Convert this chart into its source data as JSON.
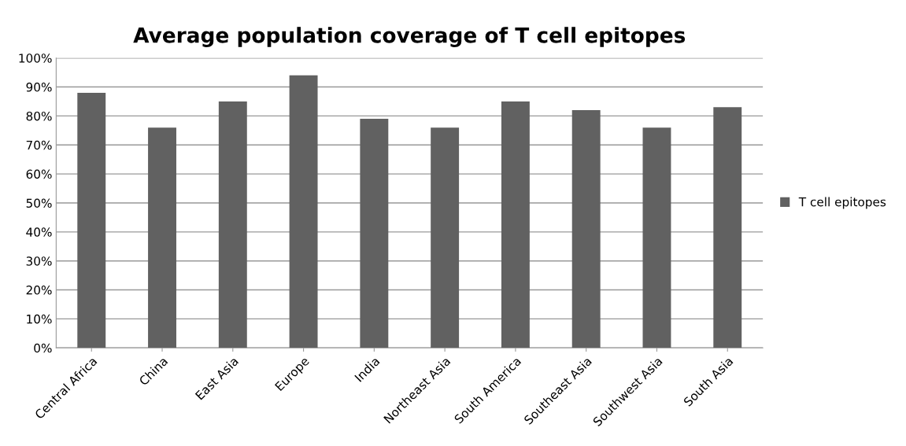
{
  "chart_data": {
    "type": "bar",
    "title": "Average population coverage of T cell epitopes",
    "categories": [
      "Central Africa",
      "China",
      "East Asia",
      "Europe",
      "India",
      "Northeast Asia",
      "South America",
      "Southeast Asia",
      "Southwest Asia",
      "South Asia"
    ],
    "series": [
      {
        "name": "T cell epitopes",
        "color": "#616161",
        "values": [
          88,
          76,
          85,
          94,
          79,
          76,
          85,
          82,
          76,
          83
        ]
      }
    ],
    "ylim": [
      0,
      100
    ],
    "yticks": [
      {
        "value": 0,
        "label": "0%"
      },
      {
        "value": 10,
        "label": "10%"
      },
      {
        "value": 20,
        "label": "20%"
      },
      {
        "value": 30,
        "label": "30%"
      },
      {
        "value": 40,
        "label": "40%"
      },
      {
        "value": 50,
        "label": "50%"
      },
      {
        "value": 60,
        "label": "60%"
      },
      {
        "value": 70,
        "label": "70%"
      },
      {
        "value": 80,
        "label": "80%"
      },
      {
        "value": 90,
        "label": "90%"
      },
      {
        "value": 100,
        "label": "100%"
      }
    ],
    "grid": "y",
    "legend": "right"
  }
}
